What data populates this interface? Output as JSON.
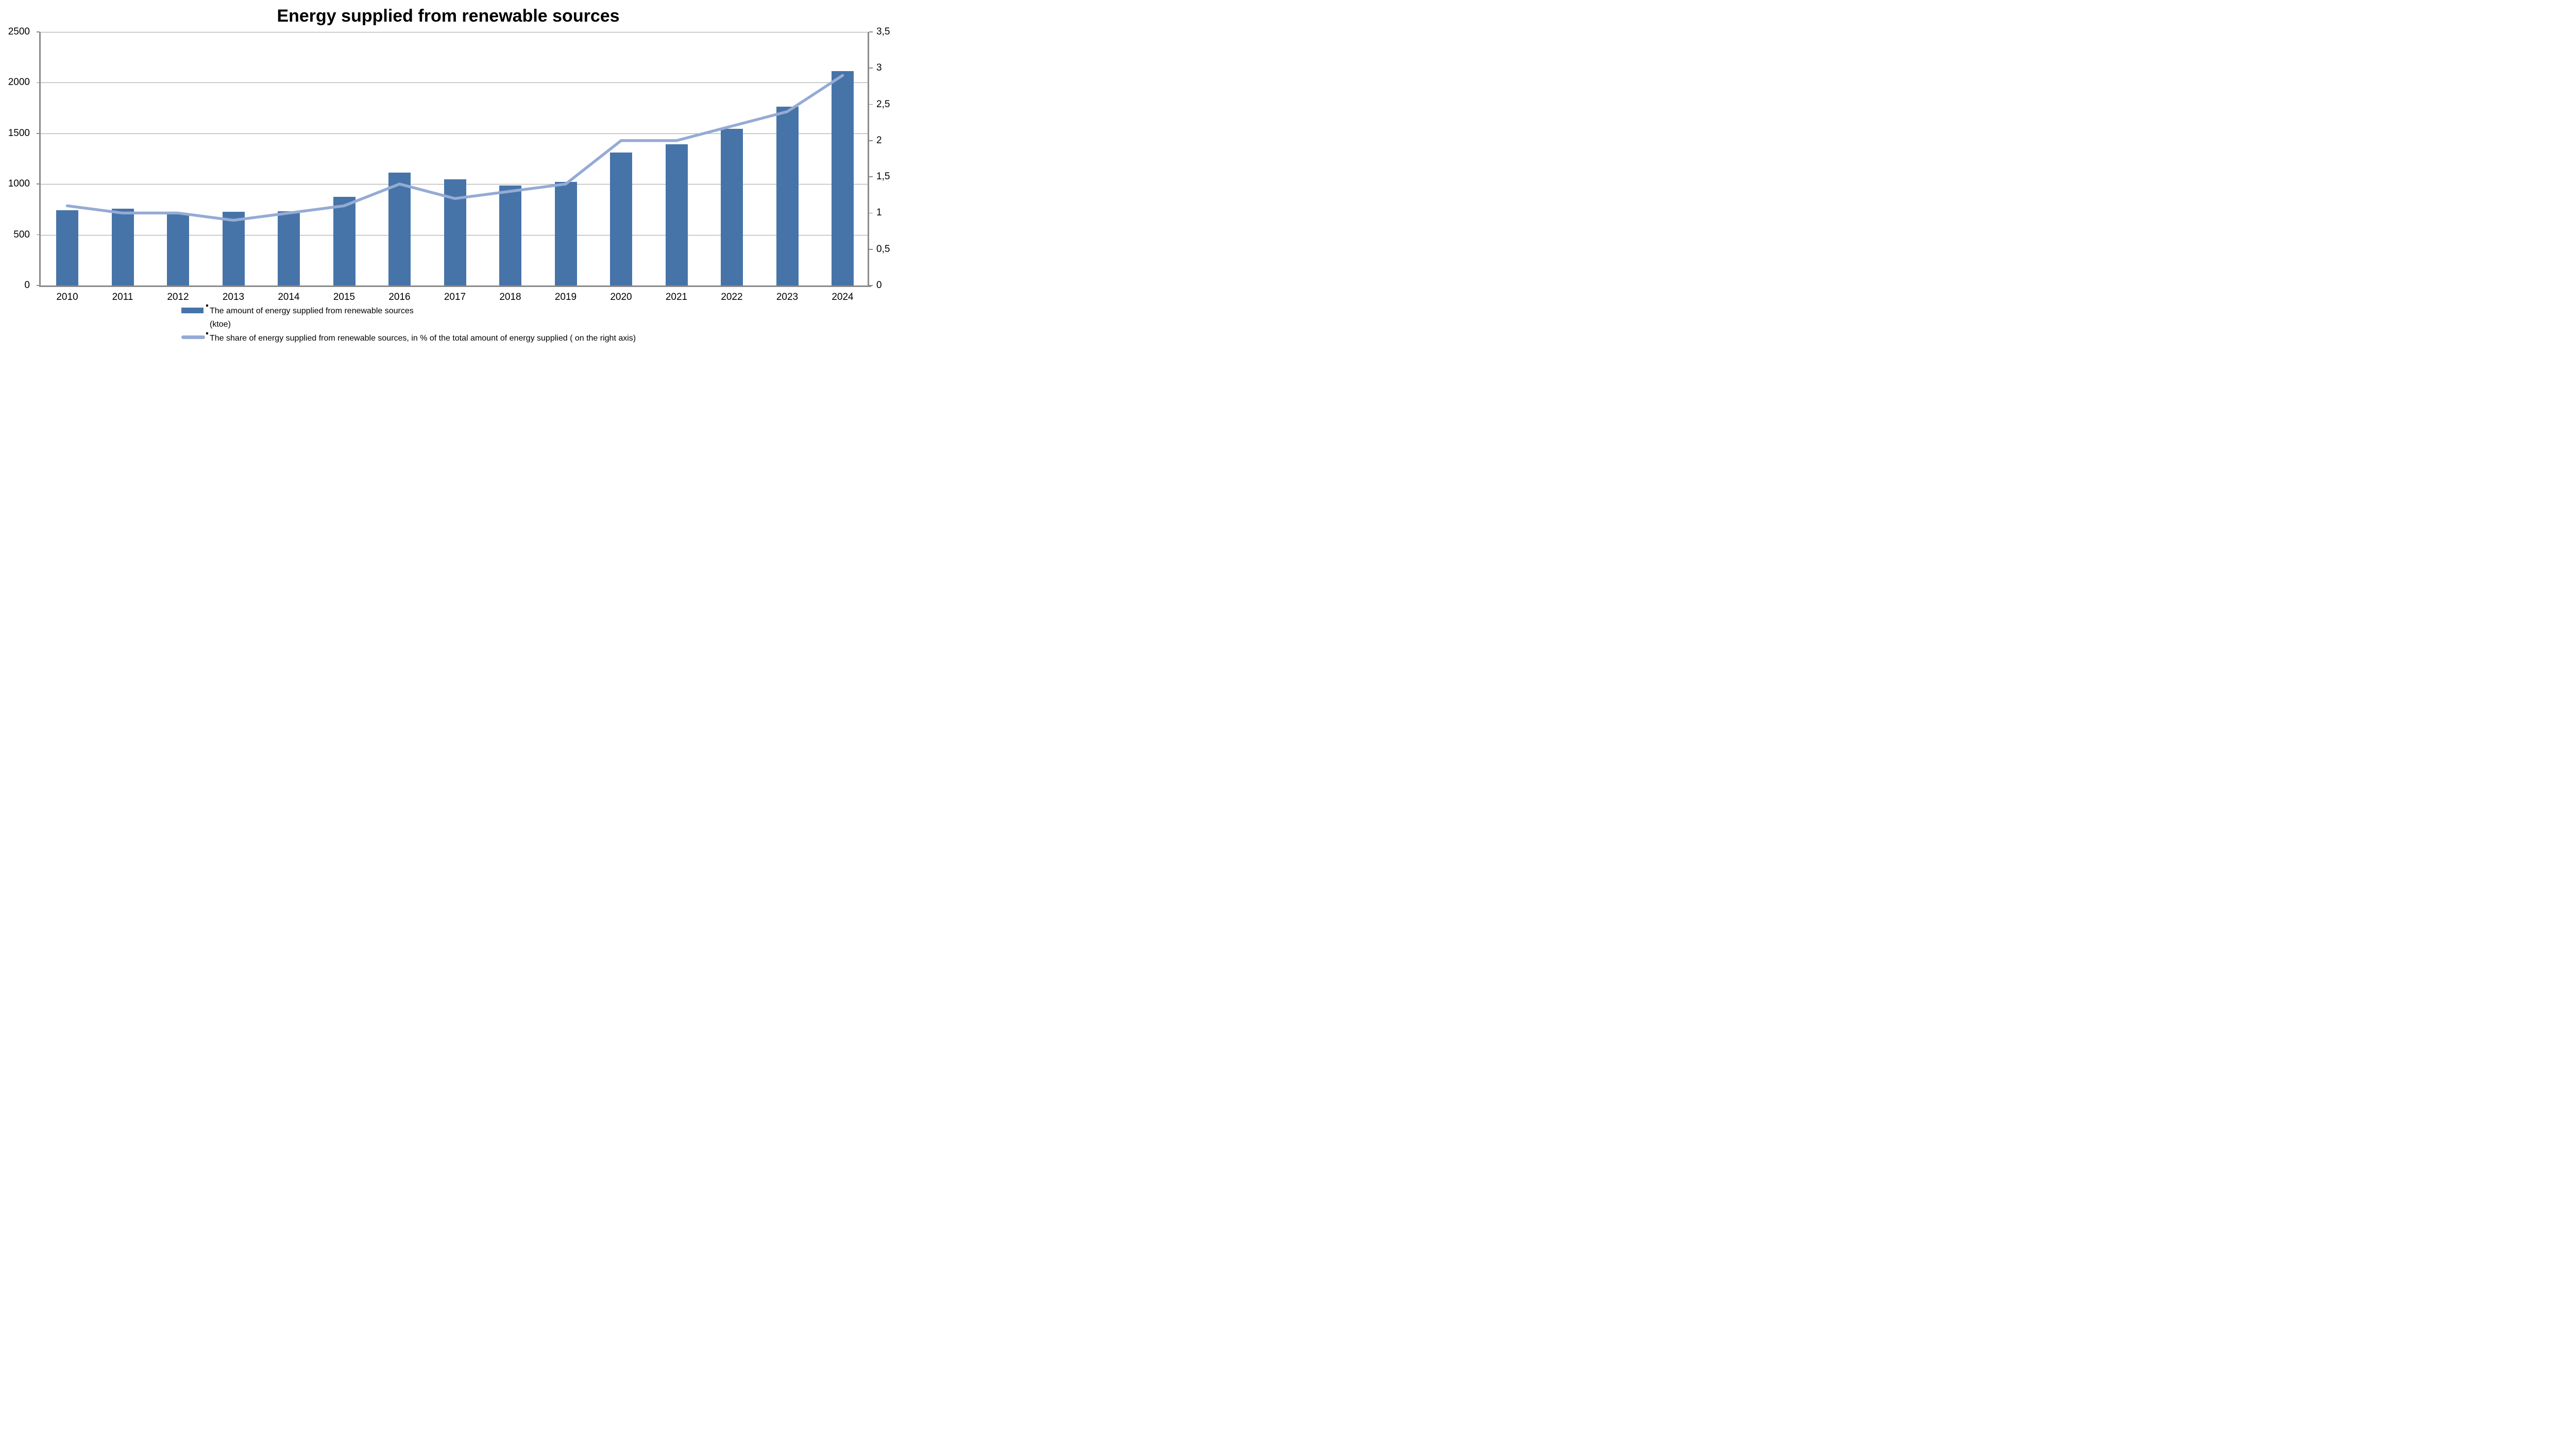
{
  "title": "Energy supplied from renewable sources",
  "chart_data": {
    "type": "bar",
    "subtype": "bar-and-line-dual-axis",
    "categories": [
      "2010",
      "2011",
      "2012",
      "2013",
      "2014",
      "2015",
      "2016",
      "2017",
      "2018",
      "2019",
      "2020",
      "2021",
      "2022",
      "2023",
      "2024"
    ],
    "series": [
      {
        "name": "The amount of energy supplied from renewable sources (ktoe)",
        "type": "bar",
        "axis": "left",
        "values": [
          740,
          755,
          705,
          725,
          730,
          875,
          1115,
          1045,
          985,
          1020,
          1310,
          1390,
          1545,
          1765,
          2115
        ]
      },
      {
        "name": "The share of energy supplied from renewable sources, in % of the total amount of energy supplied ( on the right axis)",
        "type": "line",
        "axis": "right",
        "values": [
          1.1,
          1.0,
          1.0,
          0.9,
          1.0,
          1.1,
          1.4,
          1.2,
          1.3,
          1.4,
          2.0,
          2.0,
          2.2,
          2.4,
          2.9
        ]
      }
    ],
    "left_axis": {
      "min": 0,
      "max": 2500,
      "step": 500,
      "tick_labels": [
        "0",
        "500",
        "1000",
        "1500",
        "2000",
        "2500"
      ]
    },
    "right_axis": {
      "min": 0,
      "max": 3.5,
      "step": 0.5,
      "tick_labels": [
        "0",
        "0,5",
        "1",
        "1,5",
        "2",
        "2,5",
        "3",
        "3,5"
      ]
    },
    "grid": "horizontal-on",
    "legend_position": "bottom-left",
    "legend": [
      {
        "swatch": "bar",
        "label_lines": [
          "The amount of energy supplied from renewable sources",
          "(ktoe)"
        ]
      },
      {
        "swatch": "line",
        "label_lines": [
          "The share of energy supplied from renewable sources, in % of the total amount of energy supplied ( on the right axis)"
        ]
      }
    ],
    "colors": {
      "bar": "#4674A8",
      "line": "#95ABD5",
      "grid": "#A0A0A0",
      "axis": "#8A8A8A",
      "text": "#000000"
    }
  }
}
